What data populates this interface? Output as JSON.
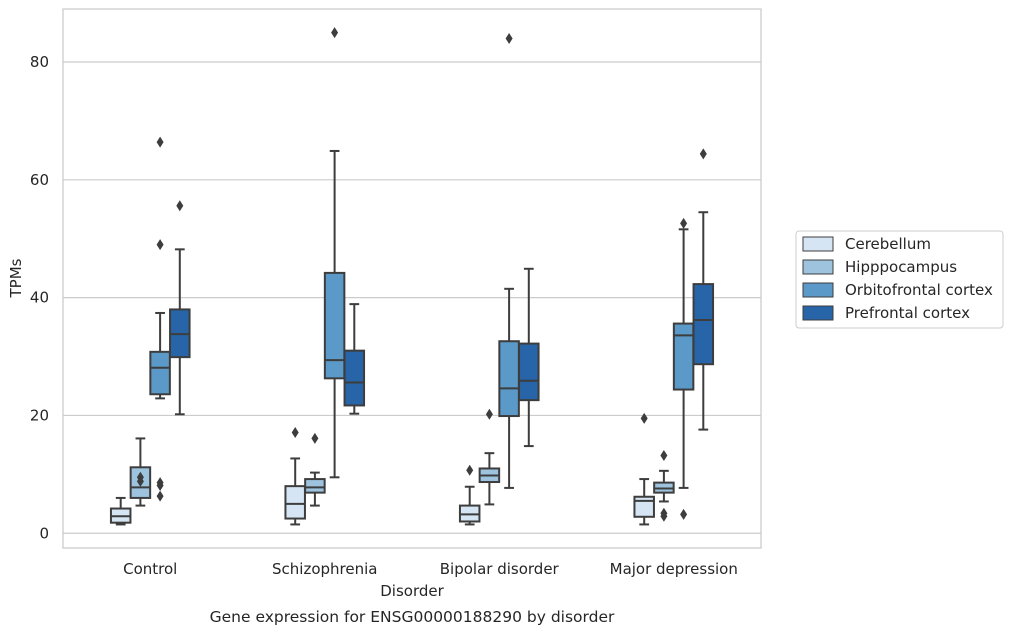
{
  "chart_data": {
    "type": "box",
    "title": "Gene expression for ENSG00000188290 by disorder",
    "xlabel": "Disorder",
    "ylabel": "TPMs",
    "categories": [
      "Control",
      "Schizophrenia",
      "Bipolar disorder",
      "Major depression"
    ],
    "ylim": [
      -2.5,
      89
    ],
    "yticks": [
      0,
      20,
      40,
      60,
      80
    ],
    "grid": "horizontal",
    "legend_position": "right",
    "series": [
      {
        "name": "Cerebellum",
        "color": "#d6e5f3",
        "boxes": [
          {
            "whislo": 1.5,
            "q1": 1.8,
            "med": 2.9,
            "q3": 4.2,
            "whishi": 6.0,
            "fliers": []
          },
          {
            "whislo": 1.5,
            "q1": 2.5,
            "med": 5.0,
            "q3": 8.0,
            "whishi": 12.7,
            "fliers": [
              17.1
            ]
          },
          {
            "whislo": 1.5,
            "q1": 2.0,
            "med": 3.2,
            "q3": 4.7,
            "whishi": 7.9,
            "fliers": [
              10.7
            ]
          },
          {
            "whislo": 1.5,
            "q1": 2.8,
            "med": 5.5,
            "q3": 6.2,
            "whishi": 9.2,
            "fliers": [
              19.5
            ]
          }
        ]
      },
      {
        "name": "Hipppocampus",
        "color": "#9dc3df",
        "boxes": [
          {
            "whislo": 4.7,
            "q1": 6.0,
            "med": 7.8,
            "q3": 11.2,
            "whishi": 16.1,
            "fliers": [
              9.5,
              8.8
            ]
          },
          {
            "whislo": 4.7,
            "q1": 6.9,
            "med": 7.8,
            "q3": 9.2,
            "whishi": 10.3,
            "fliers": [
              16.1
            ]
          },
          {
            "whislo": 4.9,
            "q1": 8.7,
            "med": 9.8,
            "q3": 11.0,
            "whishi": 13.6,
            "fliers": [
              20.2
            ]
          },
          {
            "whislo": 5.4,
            "q1": 6.9,
            "med": 7.6,
            "q3": 8.6,
            "whishi": 10.6,
            "fliers": [
              13.2,
              3.4,
              2.9
            ]
          }
        ]
      },
      {
        "name": "Orbitofrontal cortex",
        "color": "#5a99c8",
        "boxes": [
          {
            "whislo": 22.9,
            "q1": 23.6,
            "med": 28.1,
            "q3": 30.8,
            "whishi": 37.4,
            "fliers": [
              66.4,
              49.0,
              8.6,
              8.1,
              6.3
            ]
          },
          {
            "whislo": 9.5,
            "q1": 26.3,
            "med": 29.4,
            "q3": 44.2,
            "whishi": 64.9,
            "fliers": [
              85.0
            ]
          },
          {
            "whislo": 7.7,
            "q1": 19.9,
            "med": 24.6,
            "q3": 32.6,
            "whishi": 41.5,
            "fliers": [
              84.0
            ]
          },
          {
            "whislo": 7.7,
            "q1": 24.4,
            "med": 33.6,
            "q3": 35.6,
            "whishi": 51.6,
            "fliers": [
              52.6,
              3.2
            ]
          }
        ]
      },
      {
        "name": "Prefrontal cortex",
        "color": "#2765a8",
        "boxes": [
          {
            "whislo": 20.2,
            "q1": 29.9,
            "med": 33.8,
            "q3": 38.0,
            "whishi": 48.2,
            "fliers": [
              55.6
            ]
          },
          {
            "whislo": 20.3,
            "q1": 21.7,
            "med": 25.6,
            "q3": 31.0,
            "whishi": 38.9,
            "fliers": []
          },
          {
            "whislo": 14.8,
            "q1": 22.6,
            "med": 25.9,
            "q3": 32.2,
            "whishi": 44.9,
            "fliers": []
          },
          {
            "whislo": 17.6,
            "q1": 28.7,
            "med": 36.2,
            "q3": 42.3,
            "whishi": 54.5,
            "fliers": [
              64.4
            ]
          }
        ]
      }
    ]
  }
}
